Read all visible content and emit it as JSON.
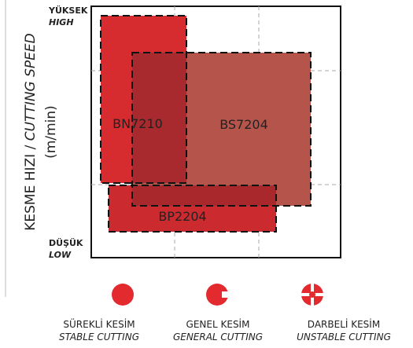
{
  "axis": {
    "label": "KESME HIZI /",
    "label_en": "CUTTING SPEED",
    "unit": "(m/min)"
  },
  "levels": {
    "high": "YÜKSEK",
    "high_en": "HIGH",
    "low": "DÜŞÜK",
    "low_en": "LOW"
  },
  "grades": [
    {
      "name": "BN7210"
    },
    {
      "name": "BS7204"
    },
    {
      "name": "BP2204"
    }
  ],
  "legend": [
    {
      "label": "SÜREKLİ KESİM",
      "label_en": "STABLE CUTTING"
    },
    {
      "label": "GENEL KESİM",
      "label_en": "GENERAL CUTTING"
    },
    {
      "label": "DARBELİ KESİM",
      "label_en": "UNSTABLE CUTTING"
    }
  ]
}
